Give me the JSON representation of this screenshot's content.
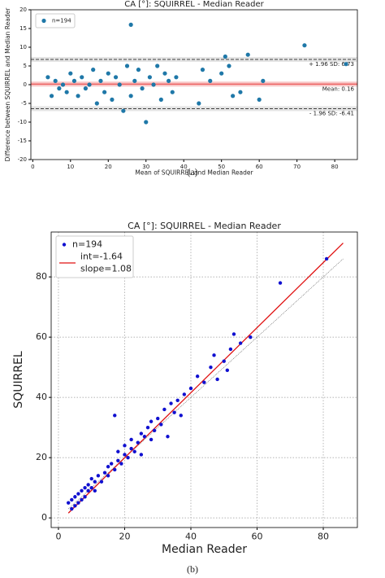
{
  "chart_data": [
    {
      "type": "scatter",
      "title": "CA [°]: SQUIRREL - Median Reader",
      "x_label": "Mean of SQUIRREL and Median Reader",
      "y_label": "Difference between SQUIRREL and Median Reader",
      "caption": "(a)",
      "xlim": [
        -0.5,
        86
      ],
      "ylim": [
        -20,
        20
      ],
      "xticks": [
        0,
        10,
        20,
        30,
        40,
        50,
        60,
        70,
        80
      ],
      "yticks": [
        -20,
        -15,
        -10,
        -5,
        0,
        5,
        10,
        15,
        20
      ],
      "grid": false,
      "legend": "upper left",
      "hlines": [
        {
          "value": 6.73,
          "label": "+ 1.96 SD: 6.73",
          "color": "#444",
          "style": "dashed"
        },
        {
          "value": 0.16,
          "label": "Mean: 0.16",
          "color": "#e83a3a",
          "style": "solid"
        },
        {
          "value": -6.41,
          "label": "- 1.96 SD: -6.41",
          "color": "#444",
          "style": "dashed"
        }
      ],
      "series": [
        {
          "name": "n=194",
          "color": "#1f78a8",
          "x": [
            4,
            5,
            6,
            7,
            8,
            9,
            10,
            11,
            12,
            13,
            14,
            15,
            16,
            17,
            18,
            19,
            20,
            21,
            22,
            23,
            24,
            25,
            26,
            26,
            27,
            28,
            29,
            30,
            31,
            32,
            33,
            34,
            35,
            36,
            37,
            38,
            44,
            45,
            47,
            50,
            51,
            52,
            53,
            55,
            57,
            60,
            61,
            72,
            83
          ],
          "values": [
            2,
            -3,
            1,
            -1,
            0,
            -2,
            3,
            1,
            -3,
            2,
            -1,
            0,
            4,
            -5,
            1,
            -2,
            3,
            -4,
            2,
            0,
            -7,
            5,
            16,
            -3,
            1,
            4,
            -1,
            -10,
            2,
            0,
            5,
            -4,
            3,
            1,
            -2,
            2,
            -5,
            4,
            1,
            3,
            7.5,
            5,
            -3,
            -2,
            8,
            -4,
            1,
            10.5,
            5.5
          ]
        }
      ]
    },
    {
      "type": "scatter",
      "title": "CA [°]: SQUIRREL - Median Reader",
      "x_label": "Median Reader",
      "y_label": "SQUIRREL",
      "caption": "(b)",
      "xlim": [
        -2.2,
        90.3
      ],
      "ylim": [
        -3.2,
        94.9
      ],
      "xticks": [
        0,
        20,
        40,
        60,
        80
      ],
      "yticks": [
        0,
        20,
        40,
        60,
        80
      ],
      "grid": true,
      "legend": "upper left",
      "fit": {
        "name_lines": [
          "int=-1.64",
          "slope=1.08"
        ],
        "intercept": -1.64,
        "slope": 1.08,
        "x_range": [
          3,
          86
        ],
        "color": "#e01010"
      },
      "series": [
        {
          "name": "n=194",
          "color": "#1010d0",
          "x": [
            3,
            4,
            4,
            5,
            5,
            6,
            6,
            7,
            7,
            8,
            8,
            9,
            9,
            10,
            10,
            11,
            11,
            12,
            13,
            14,
            15,
            15,
            16,
            17,
            17,
            18,
            18,
            19,
            20,
            20,
            21,
            22,
            22,
            23,
            24,
            25,
            25,
            26,
            27,
            28,
            28,
            29,
            30,
            31,
            32,
            33,
            34,
            35,
            36,
            37,
            38,
            40,
            42,
            44,
            46,
            47,
            48,
            50,
            51,
            52,
            53,
            55,
            58,
            67,
            81
          ],
          "values": [
            5,
            3,
            6,
            4,
            7,
            5,
            8,
            6,
            9,
            7,
            10,
            9,
            11,
            10,
            13,
            9,
            12,
            14,
            12,
            15,
            14,
            17,
            18,
            16,
            34,
            19,
            22,
            18,
            21,
            24,
            20,
            23,
            26,
            22,
            25,
            28,
            21,
            27,
            30,
            26,
            32,
            29,
            33,
            31,
            36,
            27,
            38,
            35,
            39,
            34,
            41,
            43,
            47,
            45,
            50,
            54,
            46,
            52,
            49,
            56,
            61,
            58,
            60,
            78,
            86
          ]
        }
      ]
    }
  ]
}
